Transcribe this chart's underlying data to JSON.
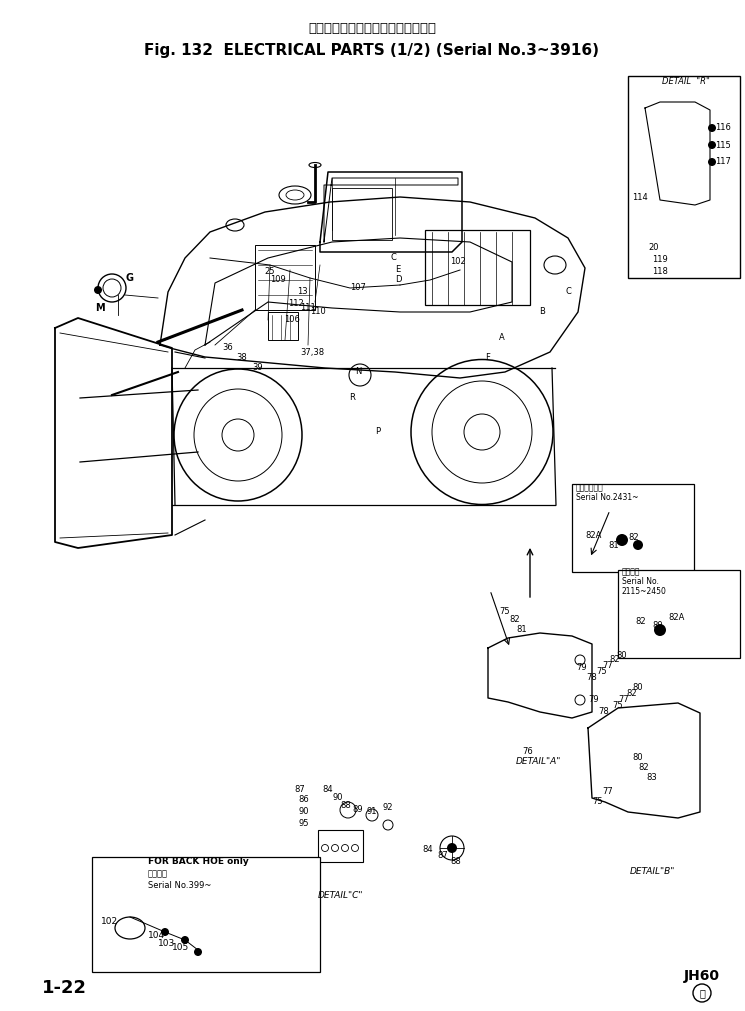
{
  "title_line1": "エレクトリカルパーツ　　通用号機",
  "title_line2": "Fig. 132  ELECTRICAL PARTS (1/2) (Serial No.3~3916)",
  "footer_left": "1-22",
  "footer_right": "JH60",
  "bg_color": "#ffffff",
  "text_color": "#000000",
  "fig_width": 7.45,
  "fig_height": 10.11,
  "dpi": 100,
  "japanese1": "通用号機",
  "serial_label1": "Serial No.399~",
  "sn_label2": "Serial No.2451~",
  "sn_label3": "Serial No.",
  "sn_label4": "2115~2450",
  "joyo_label": "常用電気",
  "zensen_label": "前後常用電気"
}
